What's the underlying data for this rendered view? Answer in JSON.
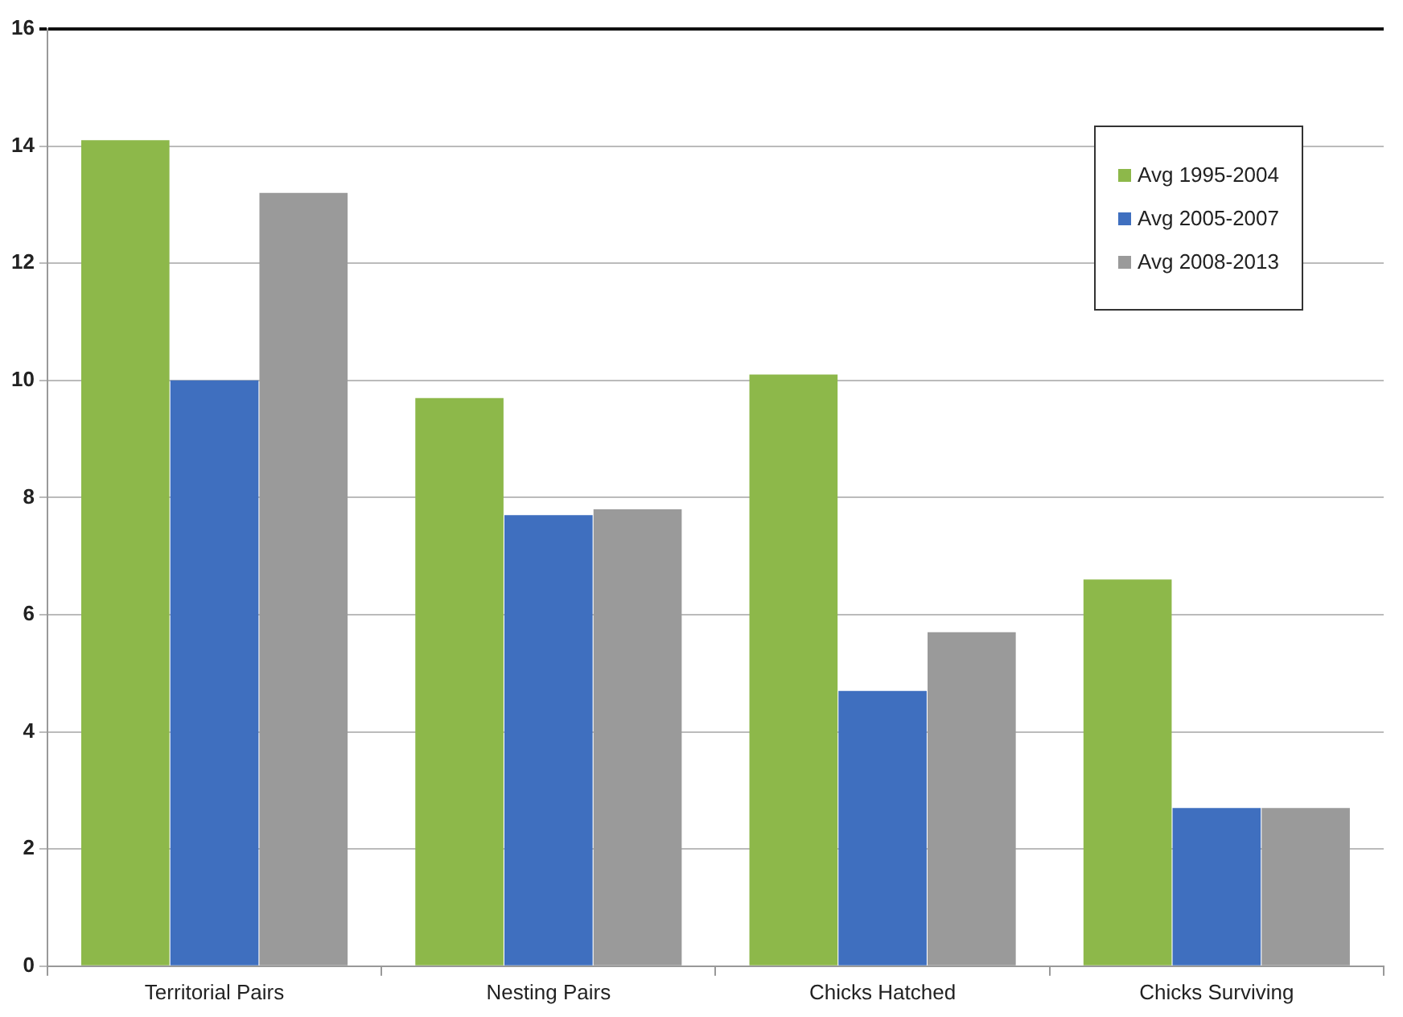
{
  "chart_data": {
    "type": "bar",
    "categories": [
      "Territorial Pairs",
      "Nesting Pairs",
      "Chicks Hatched",
      "Chicks Surviving"
    ],
    "series": [
      {
        "name": "Avg 1995-2004",
        "color": "#8db84a",
        "values": [
          14.1,
          9.7,
          10.1,
          6.6
        ]
      },
      {
        "name": "Avg 2005-2007",
        "color": "#3f6fbf",
        "values": [
          10.0,
          7.7,
          4.7,
          2.7
        ]
      },
      {
        "name": "Avg 2008-2013",
        "color": "#9a9a9a",
        "values": [
          13.2,
          7.8,
          5.7,
          2.7
        ]
      }
    ],
    "ylim": [
      0,
      16
    ],
    "yticks": [
      0,
      2,
      4,
      6,
      8,
      10,
      12,
      14,
      16
    ],
    "grid": "y",
    "legend": "top right"
  }
}
